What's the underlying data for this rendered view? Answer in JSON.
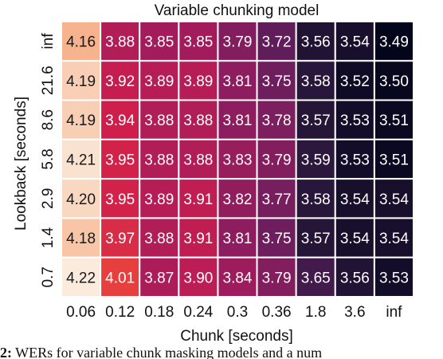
{
  "chart_data": {
    "type": "heatmap",
    "title": "Variable chunking model",
    "xlabel": "Chunk [seconds]",
    "ylabel": "Lookback [seconds]",
    "x_categories": [
      "0.06",
      "0.12",
      "0.18",
      "0.24",
      "0.3",
      "0.36",
      "1.8",
      "3.6",
      "inf"
    ],
    "y_categories": [
      "inf",
      "21.6",
      "8.6",
      "5.8",
      "2.9",
      "1.4",
      "0.7"
    ],
    "values": [
      [
        4.16,
        3.88,
        3.85,
        3.85,
        3.79,
        3.72,
        3.56,
        3.54,
        3.49
      ],
      [
        4.19,
        3.92,
        3.89,
        3.89,
        3.81,
        3.75,
        3.58,
        3.52,
        3.5
      ],
      [
        4.19,
        3.94,
        3.88,
        3.88,
        3.81,
        3.78,
        3.57,
        3.53,
        3.51
      ],
      [
        4.21,
        3.95,
        3.88,
        3.88,
        3.83,
        3.79,
        3.59,
        3.53,
        3.51
      ],
      [
        4.2,
        3.95,
        3.89,
        3.91,
        3.82,
        3.77,
        3.58,
        3.54,
        3.54
      ],
      [
        4.18,
        3.97,
        3.88,
        3.91,
        3.81,
        3.75,
        3.57,
        3.54,
        3.54
      ],
      [
        4.22,
        4.01,
        3.87,
        3.9,
        3.84,
        3.79,
        3.65,
        3.56,
        3.53
      ]
    ],
    "colormap": "rocket",
    "value_range": [
      3.49,
      4.22
    ],
    "grid": false,
    "legend": "none"
  },
  "caption": {
    "lead": "2:",
    "text": " WERs for variable chunk masking models and a num"
  }
}
